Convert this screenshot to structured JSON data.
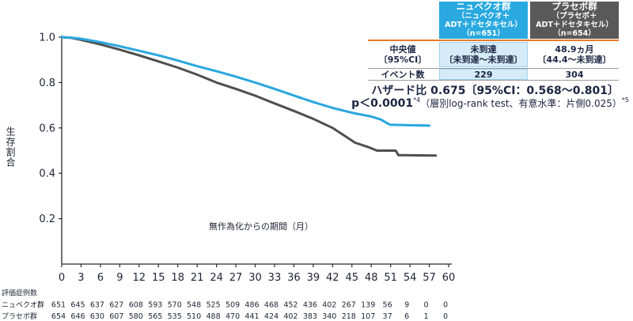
{
  "table": {
    "header": {
      "nubeqa": [
        "ニュベクオ群",
        "（ニュベクオ＋",
        "ADT＋ドセタキセル）",
        "（n=651）"
      ],
      "placebo": [
        "プラセボ群",
        "（プラセボ＋",
        "ADT＋ドセタキセル）",
        "（n=654）"
      ]
    },
    "median": {
      "label": [
        "中央値",
        "〔95%CI〕"
      ],
      "nubeqa": [
        "未到達",
        "〔未到達～未到達〕"
      ],
      "placebo": [
        "48.9ヵ月",
        "〔44.4～未到達〕"
      ]
    },
    "events": {
      "label": "イベント数",
      "nubeqa": "229",
      "placebo": "304"
    }
  },
  "stats": {
    "hazard_ratio": "ハザード比 0.675〔95%CI：0.568～0.801〕",
    "p_value": "p＜0.0001",
    "p_value_ref": "*4",
    "test_note": "（層別log-rank test、有意水準：片側0.025）",
    "test_note_ref": "*5"
  },
  "colors": {
    "nubeqa_header": "#29a9e0",
    "placebo_header": "#595959",
    "nubeqa_cell": "#d5ecf8",
    "header_rule": "#ea7a2a",
    "axis": "#2a2a2a"
  },
  "chart_data": {
    "type": "line",
    "xlabel": "無作為化からの期間（月）",
    "ylabel": "生存割合",
    "xlim": [
      0,
      60
    ],
    "ylim": [
      0,
      1.0
    ],
    "x_ticks": [
      0,
      3,
      6,
      9,
      12,
      15,
      18,
      21,
      24,
      27,
      30,
      33,
      36,
      39,
      42,
      45,
      48,
      51,
      54,
      57,
      60
    ],
    "y_tick_labels": [
      "0.2",
      "0.4",
      "0.6",
      "0.8",
      "1.0"
    ],
    "grid": false,
    "at_risk_title": "評価症例数",
    "series": [
      {
        "name": "ニュベクオ群",
        "color": "#2aa7df",
        "x": [
          0,
          1.5,
          3,
          6,
          9,
          12,
          15,
          18,
          21,
          24,
          27,
          30,
          33,
          36,
          39,
          42,
          45,
          48,
          49.5,
          50.5,
          51,
          54,
          57
        ],
        "y": [
          1.0,
          0.998,
          0.993,
          0.978,
          0.96,
          0.94,
          0.92,
          0.897,
          0.872,
          0.85,
          0.826,
          0.8,
          0.772,
          0.743,
          0.714,
          0.688,
          0.667,
          0.65,
          0.637,
          0.62,
          0.614,
          0.612,
          0.61
        ],
        "at_risk": [
          651,
          645,
          637,
          627,
          608,
          593,
          570,
          548,
          525,
          509,
          486,
          468,
          452,
          436,
          402,
          267,
          139,
          56,
          9,
          0,
          0
        ]
      },
      {
        "name": "プラセボ群",
        "color": "#4f4f4f",
        "x": [
          0,
          1.5,
          3,
          6,
          9,
          12,
          15,
          18,
          21,
          24,
          27,
          30,
          33,
          36,
          39,
          42,
          43.5,
          45.5,
          47.5,
          48.9,
          51.8,
          52.2,
          58
        ],
        "y": [
          1.0,
          0.997,
          0.988,
          0.968,
          0.945,
          0.92,
          0.893,
          0.866,
          0.835,
          0.8,
          0.772,
          0.742,
          0.708,
          0.675,
          0.64,
          0.6,
          0.572,
          0.535,
          0.516,
          0.5,
          0.5,
          0.48,
          0.478
        ],
        "at_risk": [
          654,
          646,
          630,
          607,
          580,
          565,
          535,
          510,
          488,
          470,
          441,
          424,
          402,
          383,
          340,
          218,
          107,
          37,
          6,
          1,
          0
        ]
      }
    ]
  }
}
